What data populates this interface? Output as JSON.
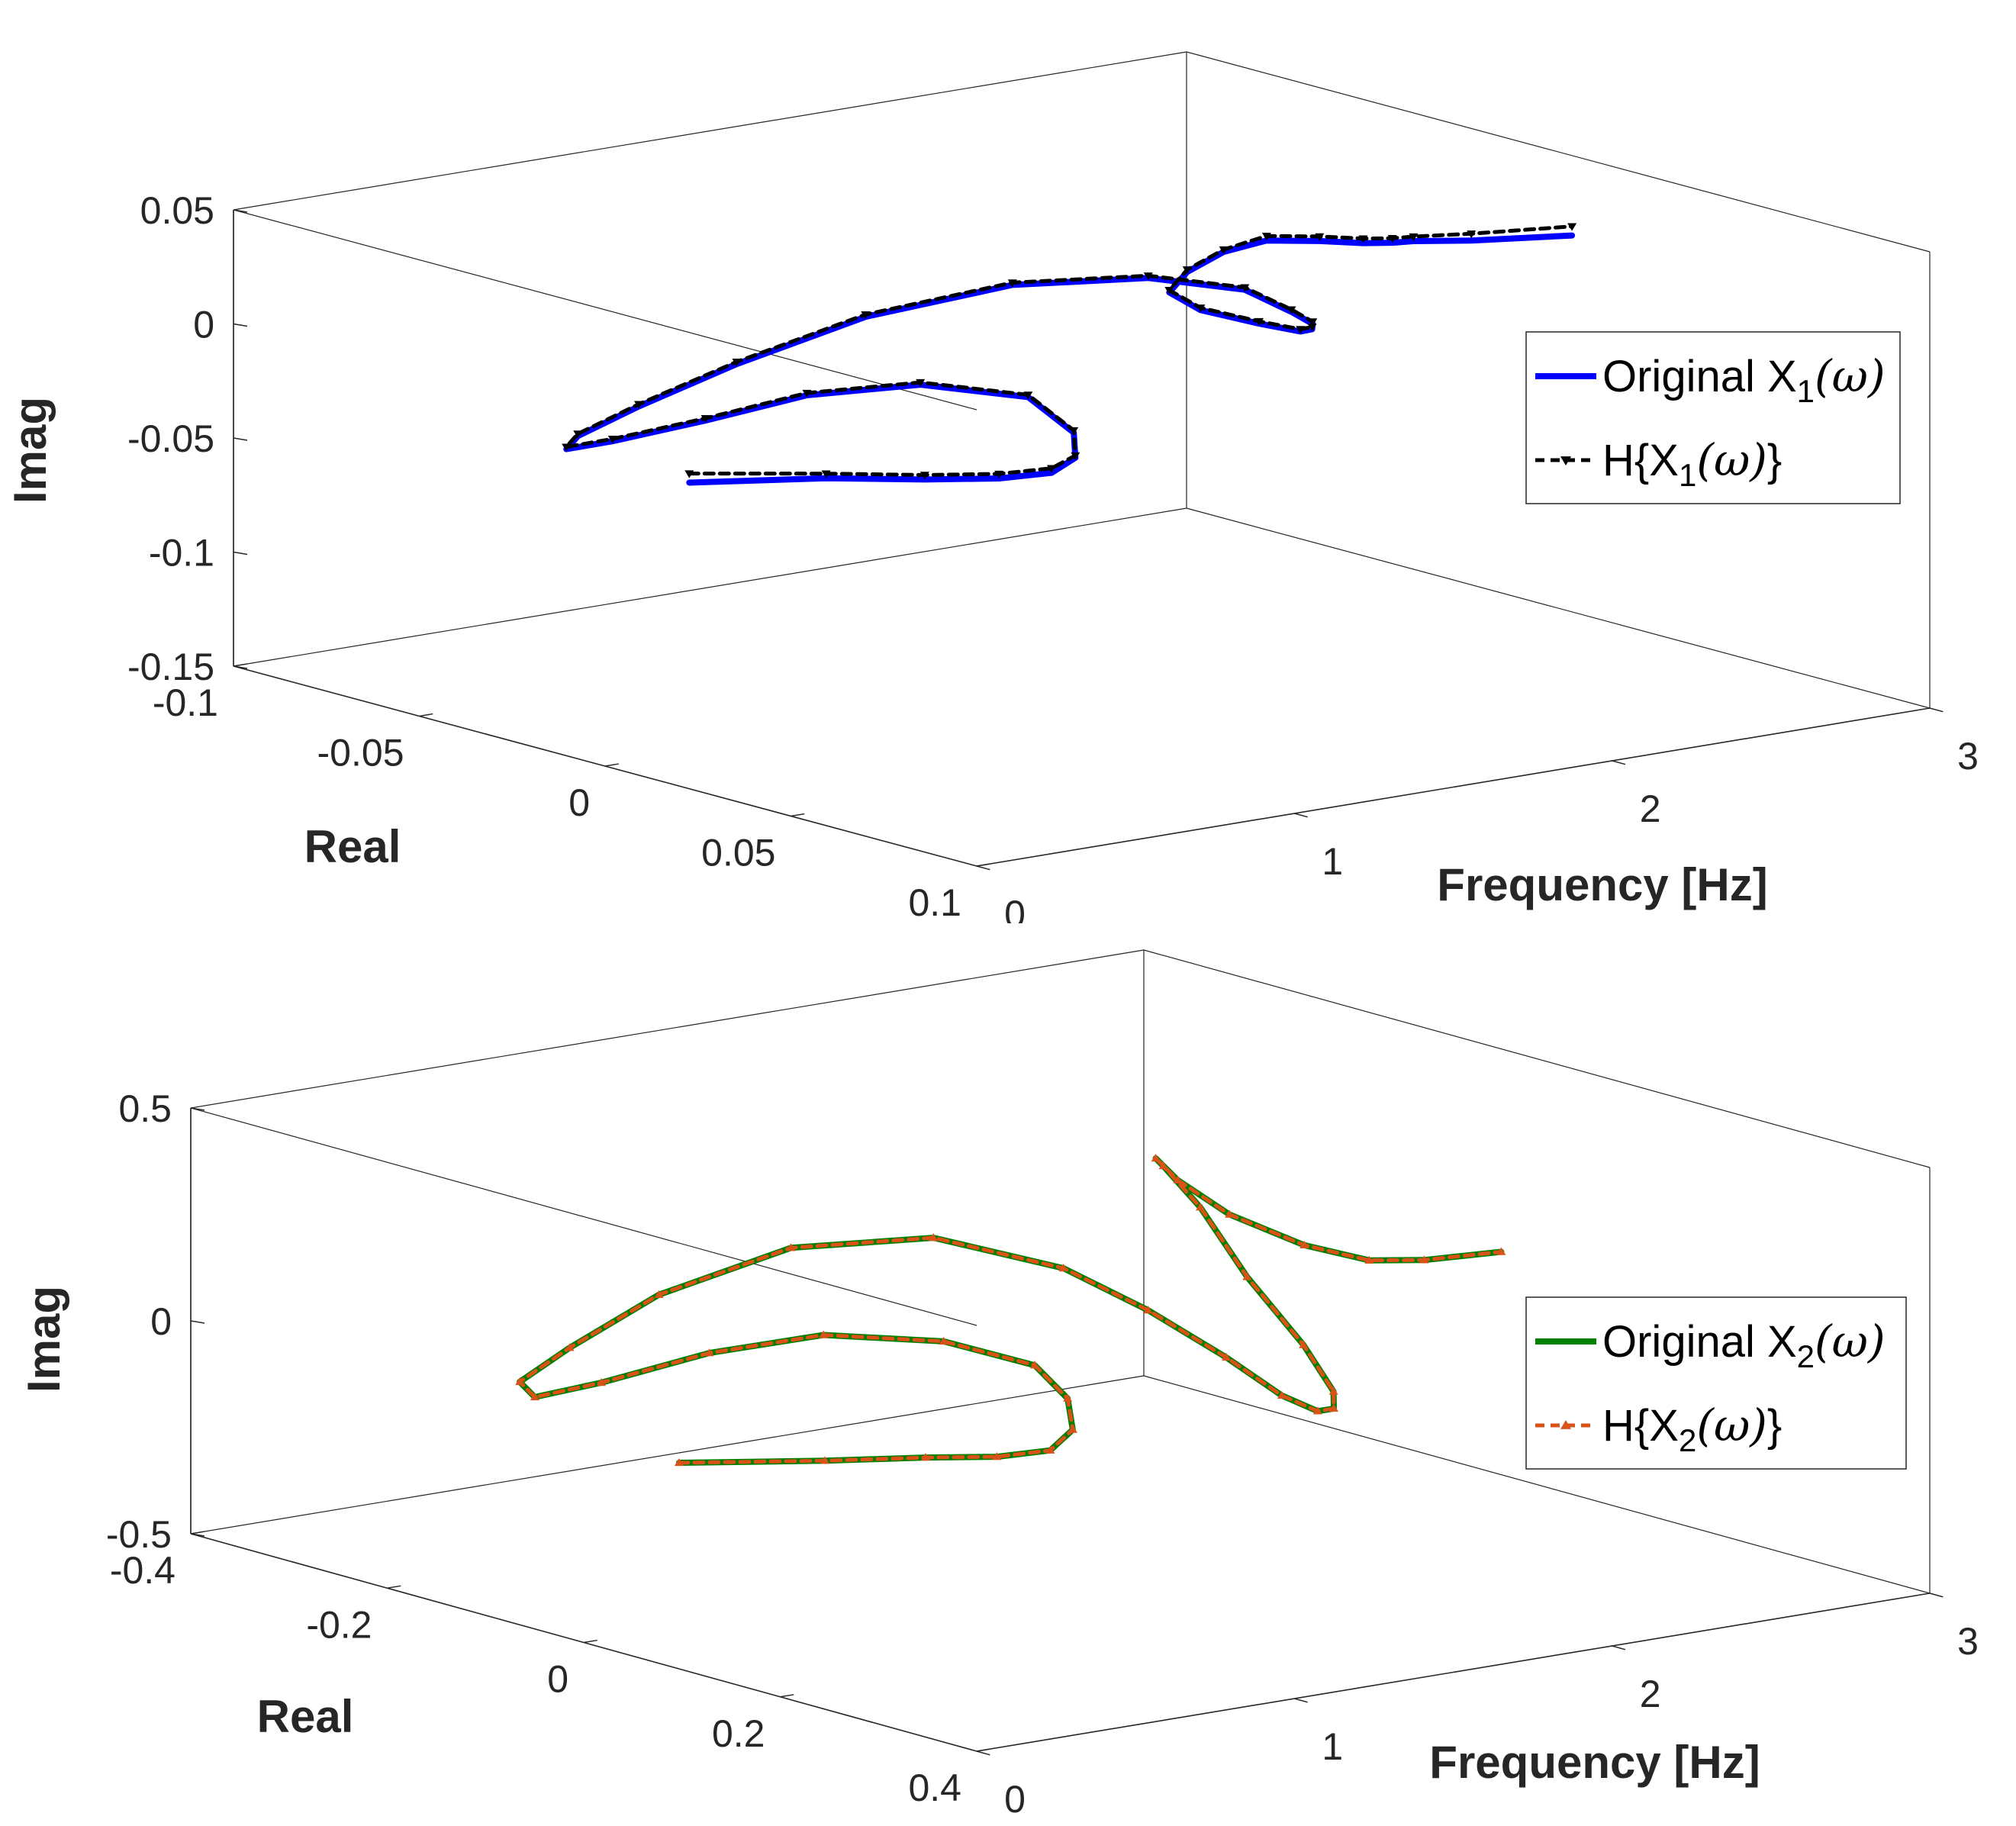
{
  "chart_data": [
    {
      "type": "line3d",
      "title": "",
      "xlabel": "Frequency [Hz]",
      "ylabel": "Real",
      "zlabel": "Imag",
      "xlim": [
        0,
        3
      ],
      "ylim": [
        -0.1,
        0.1
      ],
      "zlim": [
        -0.15,
        0.05
      ],
      "xticks": [
        "0",
        "1",
        "2",
        "3"
      ],
      "yticks": [
        "-0.1",
        "-0.05",
        "0",
        "0.05",
        "0.1"
      ],
      "zticks": [
        "-0.15",
        "-0.1",
        "-0.05",
        "0",
        "0.05"
      ],
      "grid": false,
      "legend_position": "right",
      "series": [
        {
          "name": "Original X1(ω)",
          "legend": {
            "prefix": "Original X",
            "sub": "1",
            "arg": "(ω)",
            "suffix": ""
          },
          "color": "#0000ff",
          "style": "solid",
          "x": [
            0.3,
            0.45,
            0.55,
            0.62,
            0.68,
            0.72,
            0.75,
            0.77,
            0.7,
            0.6,
            0.55,
            0.55,
            0.65,
            0.85,
            1.1,
            1.35,
            1.58,
            1.75,
            1.85,
            1.92,
            1.95,
            1.97,
            1.98,
            1.99,
            2.0,
            2.05,
            2.15,
            2.3,
            2.45,
            2.55,
            2.6,
            2.62,
            2.63,
            2.65,
            2.75,
            2.95
          ],
          "y": [
            -0.003,
            0.021,
            0.039,
            0.053,
            0.062,
            0.065,
            0.062,
            0.048,
            0.025,
            0.003,
            -0.02,
            -0.045,
            -0.066,
            -0.08,
            -0.085,
            -0.08,
            -0.065,
            -0.04,
            -0.012,
            0.008,
            0.018,
            0.022,
            0.021,
            0.017,
            0.005,
            -0.015,
            -0.032,
            -0.04,
            -0.043,
            -0.04,
            -0.03,
            -0.02,
            -0.013,
            -0.009,
            -0.002,
            0.008
          ],
          "z": [
            -0.034,
            -0.025,
            -0.02,
            -0.015,
            -0.01,
            -0.003,
            0.006,
            0.015,
            0.012,
            0.0,
            -0.02,
            -0.04,
            -0.055,
            -0.06,
            -0.055,
            -0.04,
            -0.018,
            0.003,
            0.016,
            0.018,
            0.012,
            0.008,
            0.005,
            0.002,
            0.0,
            -0.004,
            -0.006,
            -0.004,
            0.0,
            0.004,
            0.007,
            0.01,
            0.013,
            0.015,
            0.016,
            0.018
          ]
        },
        {
          "name": "H{X1(ω)}",
          "legend": {
            "prefix": "H{X",
            "sub": "1",
            "arg": "(ω)",
            "suffix": "}"
          },
          "color": "#000000",
          "style": "dashed",
          "marker": "triangle-down",
          "x": [
            0.3,
            0.45,
            0.55,
            0.62,
            0.68,
            0.72,
            0.75,
            0.77,
            0.7,
            0.6,
            0.55,
            0.55,
            0.65,
            0.85,
            1.1,
            1.35,
            1.58,
            1.75,
            1.85,
            1.92,
            1.95,
            1.97,
            1.98,
            1.99,
            2.0,
            2.05,
            2.15,
            2.3,
            2.45,
            2.55,
            2.6,
            2.62,
            2.63,
            2.65,
            2.75,
            2.95
          ],
          "y": [
            -0.003,
            0.021,
            0.039,
            0.053,
            0.062,
            0.065,
            0.062,
            0.048,
            0.025,
            0.003,
            -0.02,
            -0.045,
            -0.066,
            -0.08,
            -0.085,
            -0.08,
            -0.065,
            -0.04,
            -0.012,
            0.008,
            0.018,
            0.022,
            0.021,
            0.017,
            0.005,
            -0.015,
            -0.032,
            -0.04,
            -0.043,
            -0.04,
            -0.03,
            -0.02,
            -0.013,
            -0.009,
            -0.002,
            0.008
          ],
          "z": [
            -0.03,
            -0.023,
            -0.018,
            -0.013,
            -0.008,
            -0.002,
            0.007,
            0.016,
            0.013,
            0.001,
            -0.019,
            -0.039,
            -0.054,
            -0.059,
            -0.054,
            -0.039,
            -0.017,
            0.004,
            0.017,
            0.019,
            0.013,
            0.009,
            0.006,
            0.003,
            0.001,
            -0.003,
            -0.005,
            -0.003,
            0.001,
            0.006,
            0.009,
            0.012,
            0.015,
            0.017,
            0.019,
            0.022
          ]
        }
      ]
    },
    {
      "type": "line3d",
      "title": "",
      "xlabel": "Frequency [Hz]",
      "ylabel": "Real",
      "zlabel": "Imag",
      "xlim": [
        0,
        3
      ],
      "ylim": [
        -0.4,
        0.4
      ],
      "zlim": [
        -0.5,
        0.5
      ],
      "xticks": [
        "0",
        "1",
        "2",
        "3"
      ],
      "yticks": [
        "-0.4",
        "-0.2",
        "0",
        "0.2",
        "0.4"
      ],
      "zticks": [
        "-0.5",
        "0",
        "0.5"
      ],
      "grid": false,
      "legend_position": "right",
      "series": [
        {
          "name": "Original X2(ω)",
          "legend": {
            "prefix": "Original X",
            "sub": "2",
            "arg": "(ω)",
            "suffix": ""
          },
          "color": "#008000",
          "style": "solid",
          "x": [
            0.3,
            0.45,
            0.55,
            0.62,
            0.68,
            0.72,
            0.75,
            0.77,
            0.7,
            0.6,
            0.55,
            0.55,
            0.65,
            0.85,
            1.1,
            1.35,
            1.58,
            1.75,
            1.85,
            1.9,
            1.93,
            1.95,
            1.97,
            1.99,
            2.02,
            2.08,
            2.15,
            2.25,
            2.35,
            2.45,
            2.55,
            2.62,
            2.67,
            2.72,
            2.8,
            2.95
          ],
          "y": [
            0.0,
            0.1,
            0.17,
            0.22,
            0.255,
            0.265,
            0.25,
            0.21,
            0.14,
            0.05,
            -0.05,
            -0.16,
            -0.26,
            -0.34,
            -0.37,
            -0.36,
            -0.3,
            -0.21,
            -0.11,
            -0.04,
            0.03,
            0.08,
            0.11,
            0.12,
            0.11,
            0.06,
            -0.02,
            -0.1,
            -0.17,
            -0.21,
            -0.22,
            -0.19,
            -0.13,
            -0.08,
            -0.05,
            -0.02
          ],
          "z": [
            -0.115,
            -0.065,
            -0.025,
            0.0,
            0.03,
            0.08,
            0.14,
            0.19,
            0.21,
            0.18,
            0.08,
            -0.06,
            -0.17,
            -0.21,
            -0.18,
            -0.08,
            0.04,
            0.1,
            0.08,
            0.02,
            -0.05,
            -0.11,
            -0.13,
            -0.12,
            -0.09,
            -0.02,
            0.08,
            0.18,
            0.22,
            0.2,
            0.13,
            0.06,
            0.02,
            0.01,
            0.02,
            0.04
          ]
        },
        {
          "name": "H{X2(ω)}",
          "legend": {
            "prefix": "H{X",
            "sub": "2",
            "arg": "(ω)",
            "suffix": "}"
          },
          "color": "#d95319",
          "style": "dashed",
          "marker": "triangle-up",
          "x": [
            0.3,
            0.45,
            0.55,
            0.62,
            0.68,
            0.72,
            0.75,
            0.77,
            0.7,
            0.6,
            0.55,
            0.55,
            0.65,
            0.85,
            1.1,
            1.35,
            1.58,
            1.75,
            1.85,
            1.9,
            1.93,
            1.95,
            1.97,
            1.99,
            2.02,
            2.08,
            2.15,
            2.25,
            2.35,
            2.45,
            2.55,
            2.62,
            2.67,
            2.72,
            2.8,
            2.95
          ],
          "y": [
            0.0,
            0.1,
            0.17,
            0.22,
            0.255,
            0.265,
            0.25,
            0.21,
            0.14,
            0.05,
            -0.05,
            -0.16,
            -0.26,
            -0.34,
            -0.37,
            -0.36,
            -0.3,
            -0.21,
            -0.11,
            -0.04,
            0.03,
            0.08,
            0.11,
            0.12,
            0.11,
            0.06,
            -0.02,
            -0.1,
            -0.17,
            -0.21,
            -0.22,
            -0.19,
            -0.13,
            -0.08,
            -0.05,
            -0.02
          ],
          "z": [
            -0.115,
            -0.065,
            -0.025,
            0.0,
            0.03,
            0.08,
            0.14,
            0.19,
            0.21,
            0.18,
            0.08,
            -0.06,
            -0.17,
            -0.21,
            -0.18,
            -0.08,
            0.04,
            0.1,
            0.08,
            0.02,
            -0.05,
            -0.11,
            -0.13,
            -0.12,
            -0.09,
            -0.02,
            0.08,
            0.18,
            0.22,
            0.2,
            0.13,
            0.06,
            0.02,
            0.01,
            0.02,
            0.04
          ]
        }
      ]
    }
  ]
}
